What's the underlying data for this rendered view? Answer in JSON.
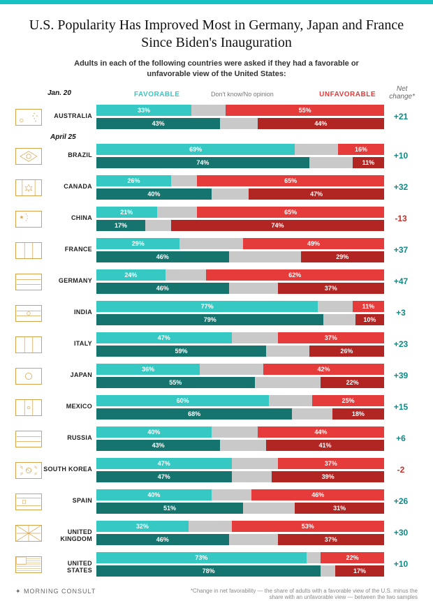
{
  "colors": {
    "accent_bar": "#18c2c4",
    "fav_before": "#36c9c3",
    "fav_after": "#16746f",
    "dk": "#c9c9c9",
    "unfav_before": "#e63b3b",
    "unfav_after": "#b12522",
    "net_pos": "#0f8a86",
    "net_neg": "#c8302d",
    "flag_stroke": "#d7a34a"
  },
  "title": "U.S. Popularity Has Improved Most in Germany, Japan and France Since Biden's Inauguration",
  "subtitle": "Adults in each of the following countries were asked if they had a favorable or unfavorable view of the United States:",
  "header": {
    "date_before": "Jan. 20",
    "date_after": "April 25",
    "favorable": "FAVORABLE",
    "dontknow": "Don't know/No opinion",
    "unfavorable": "UNFAVORABLE",
    "net_line1": "Net",
    "net_line2": "change*"
  },
  "countries": [
    {
      "name": "AUSTRALIA",
      "before_fav": 33,
      "before_unfav": 55,
      "after_fav": 43,
      "after_unfav": 44,
      "net": 21
    },
    {
      "name": "BRAZIL",
      "before_fav": 69,
      "before_unfav": 16,
      "after_fav": 74,
      "after_unfav": 11,
      "net": 10
    },
    {
      "name": "CANADA",
      "before_fav": 26,
      "before_unfav": 65,
      "after_fav": 40,
      "after_unfav": 47,
      "net": 32
    },
    {
      "name": "CHINA",
      "before_fav": 21,
      "before_unfav": 65,
      "after_fav": 17,
      "after_unfav": 74,
      "net": -13
    },
    {
      "name": "FRANCE",
      "before_fav": 29,
      "before_unfav": 49,
      "after_fav": 46,
      "after_unfav": 29,
      "net": 37
    },
    {
      "name": "GERMANY",
      "before_fav": 24,
      "before_unfav": 62,
      "after_fav": 46,
      "after_unfav": 37,
      "net": 47
    },
    {
      "name": "INDIA",
      "before_fav": 77,
      "before_unfav": 11,
      "after_fav": 79,
      "after_unfav": 10,
      "net": 3
    },
    {
      "name": "ITALY",
      "before_fav": 47,
      "before_unfav": 37,
      "after_fav": 59,
      "after_unfav": 26,
      "net": 23
    },
    {
      "name": "JAPAN",
      "before_fav": 36,
      "before_unfav": 42,
      "after_fav": 55,
      "after_unfav": 22,
      "net": 39
    },
    {
      "name": "MEXICO",
      "before_fav": 60,
      "before_unfav": 25,
      "after_fav": 68,
      "after_unfav": 18,
      "net": 15
    },
    {
      "name": "RUSSIA",
      "before_fav": 40,
      "before_unfav": 44,
      "after_fav": 43,
      "after_unfav": 41,
      "net": 6
    },
    {
      "name": "SOUTH KOREA",
      "before_fav": 47,
      "before_unfav": 37,
      "after_fav": 47,
      "after_unfav": 39,
      "net": -2
    },
    {
      "name": "SPAIN",
      "before_fav": 40,
      "before_unfav": 46,
      "after_fav": 51,
      "after_unfav": 31,
      "net": 26
    },
    {
      "name": "UNITED KINGDOM",
      "before_fav": 32,
      "before_unfav": 53,
      "after_fav": 46,
      "after_unfav": 37,
      "net": 30
    },
    {
      "name": "UNITED STATES",
      "before_fav": 73,
      "before_unfav": 22,
      "after_fav": 78,
      "after_unfav": 17,
      "net": 10
    }
  ],
  "flag_svgs": {
    "AUSTRALIA": "<svg viewBox='0 0 38 24'><rect width='38' height='24' fill='none'/><circle cx='8' cy='17' r='2.5' fill='none' stroke='#d7a34a' stroke-width='0.7'/><circle cx='28' cy='6' r='0.8' fill='#d7a34a'/><circle cx='32' cy='10' r='0.8' fill='#d7a34a'/><circle cx='28' cy='14' r='0.8' fill='#d7a34a'/><circle cx='26' cy='10' r='0.8' fill='#d7a34a'/><circle cx='30' cy='18' r='0.8' fill='#d7a34a'/></svg>",
    "BRAZIL": "<svg viewBox='0 0 38 24'><rect width='38' height='24' fill='none'/><path d='M19 4 L32 12 L19 20 L6 12 Z' fill='none' stroke='#d7a34a' stroke-width='0.8'/><circle cx='19' cy='12' r='3.5' fill='none' stroke='#d7a34a' stroke-width='0.8'/></svg>",
    "CANADA": "<svg viewBox='0 0 38 24'><rect width='38' height='24' fill='none'/><line x1='9' y1='0' x2='9' y2='24' stroke='#d7a34a' stroke-width='0.8'/><line x1='29' y1='0' x2='29' y2='24' stroke='#d7a34a' stroke-width='0.8'/><path d='M19 7 L21 11 L24 10 L22 14 L24 16 L20 15 L19 18 L18 15 L14 16 L16 14 L14 10 L17 11 Z' fill='none' stroke='#d7a34a' stroke-width='0.6'/></svg>",
    "CHINA": "<svg viewBox='0 0 38 24'><rect width='38' height='24' fill='none'/><path d='M8 6 l1 2 2 0 -1.6 1.3 0.6 2 -2 -1.2 -2 1.2 0.6 -2 L5 8 l2 0 Z' fill='#d7a34a'/><circle cx='15' cy='4' r='0.7' fill='#d7a34a'/><circle cx='17' cy='7' r='0.7' fill='#d7a34a'/><circle cx='17' cy='11' r='0.7' fill='#d7a34a'/><circle cx='15' cy='14' r='0.7' fill='#d7a34a'/></svg>",
    "FRANCE": "<svg viewBox='0 0 38 24'><rect width='38' height='24' fill='none'/><line x1='12.7' y1='0' x2='12.7' y2='24' stroke='#d7a34a' stroke-width='0.8'/><line x1='25.3' y1='0' x2='25.3' y2='24' stroke='#d7a34a' stroke-width='0.8'/></svg>",
    "GERMANY": "<svg viewBox='0 0 38 24'><rect width='38' height='24' fill='none'/><line x1='0' y1='8' x2='38' y2='8' stroke='#d7a34a' stroke-width='0.8'/><line x1='0' y1='16' x2='38' y2='16' stroke='#d7a34a' stroke-width='0.8'/></svg>",
    "INDIA": "<svg viewBox='0 0 38 24'><rect width='38' height='24' fill='none'/><line x1='0' y1='8' x2='38' y2='8' stroke='#d7a34a' stroke-width='0.8'/><line x1='0' y1='16' x2='38' y2='16' stroke='#d7a34a' stroke-width='0.8'/><circle cx='19' cy='12' r='2.5' fill='none' stroke='#d7a34a' stroke-width='0.7'/></svg>",
    "ITALY": "<svg viewBox='0 0 38 24'><rect width='38' height='24' fill='none'/><line x1='12.7' y1='0' x2='12.7' y2='24' stroke='#d7a34a' stroke-width='0.8'/><line x1='25.3' y1='0' x2='25.3' y2='24' stroke='#d7a34a' stroke-width='0.8'/></svg>",
    "JAPAN": "<svg viewBox='0 0 38 24'><rect width='38' height='24' fill='none'/><circle cx='19' cy='12' r='5' fill='none' stroke='#d7a34a' stroke-width='0.8'/></svg>",
    "MEXICO": "<svg viewBox='0 0 38 24'><rect width='38' height='24' fill='none'/><line x1='12.7' y1='0' x2='12.7' y2='24' stroke='#d7a34a' stroke-width='0.8'/><line x1='25.3' y1='0' x2='25.3' y2='24' stroke='#d7a34a' stroke-width='0.8'/><circle cx='19' cy='12' r='2' fill='none' stroke='#d7a34a' stroke-width='0.7'/></svg>",
    "RUSSIA": "<svg viewBox='0 0 38 24'><rect width='38' height='24' fill='none'/><line x1='0' y1='8' x2='38' y2='8' stroke='#d7a34a' stroke-width='0.8'/><line x1='0' y1='16' x2='38' y2='16' stroke='#d7a34a' stroke-width='0.8'/></svg>",
    "SOUTH KOREA": "<svg viewBox='0 0 38 24'><rect width='38' height='24' fill='none'/><circle cx='19' cy='12' r='4' fill='none' stroke='#d7a34a' stroke-width='0.8'/><path d='M15 12 Q17 9 19 12 Q21 15 23 12' fill='none' stroke='#d7a34a' stroke-width='0.6'/><g stroke='#d7a34a' stroke-width='0.6'><line x1='6' y1='5' x2='10' y2='7'/><line x1='6' y1='7' x2='10' y2='9'/><line x1='28' y1='5' x2='32' y2='7'/><line x1='28' y1='7' x2='32' y2='9'/><line x1='6' y1='17' x2='10' y2='15'/><line x1='6' y1='19' x2='10' y2='17'/><line x1='28' y1='17' x2='32' y2='15'/><line x1='28' y1='19' x2='32' y2='17'/></g></svg>",
    "SPAIN": "<svg viewBox='0 0 38 24'><rect width='38' height='24' fill='none'/><line x1='0' y1='6' x2='38' y2='6' stroke='#d7a34a' stroke-width='0.8'/><line x1='0' y1='18' x2='38' y2='18' stroke='#d7a34a' stroke-width='0.8'/><rect x='10' y='9' width='4' height='6' fill='none' stroke='#d7a34a' stroke-width='0.6'/></svg>",
    "UNITED KINGDOM": "<svg viewBox='0 0 38 24'><rect width='38' height='24' fill='none'/><g stroke='#d7a34a' stroke-width='0.8' fill='none'><line x1='0' y1='0' x2='38' y2='24'/><line x1='38' y1='0' x2='0' y2='24'/><line x1='19' y1='0' x2='19' y2='24'/><line x1='0' y1='12' x2='38' y2='12'/></g></svg>",
    "UNITED STATES": "<svg viewBox='0 0 38 24'><rect width='38' height='24' fill='none'/><g stroke='#d7a34a' stroke-width='0.6'><line x1='15' y1='3' x2='38' y2='3'/><line x1='15' y1='6' x2='38' y2='6'/><line x1='15' y1='9' x2='38' y2='9'/><line x1='0' y1='12' x2='38' y2='12'/><line x1='0' y1='15' x2='38' y2='15'/><line x1='0' y1='18' x2='38' y2='18'/><line x1='0' y1='21' x2='38' y2='21'/></g><rect x='0' y='0' width='15' height='11' fill='none' stroke='#d7a34a' stroke-width='0.6'/></svg>"
  },
  "footer": {
    "brand": "✦ MORNING CONSULT",
    "note": "*Change in net favorability — the share of adults with a favorable view of the U.S. minus the share with an unfavorable view — between the two samples"
  }
}
